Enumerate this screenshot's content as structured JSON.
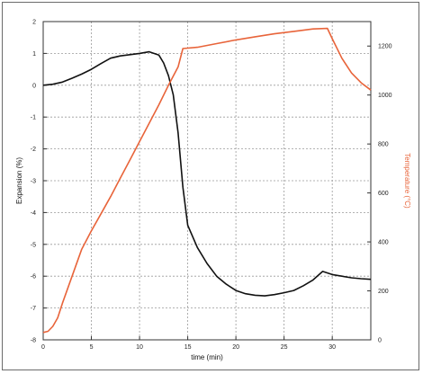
{
  "chart_data": {
    "type": "line",
    "xlabel": "time (min)",
    "ylabel_left": "Expansion (%)",
    "ylabel_right": "Temperature (°C)",
    "xlim": [
      0,
      34
    ],
    "ylim_left": [
      -8,
      2
    ],
    "ylim_right": [
      0,
      1300
    ],
    "x_ticks": [
      "0",
      "5",
      "10",
      "15",
      "20",
      "25",
      "30"
    ],
    "y_left_ticks": [
      "2",
      "1",
      "0",
      "-1",
      "-2",
      "-3",
      "-4",
      "-5",
      "-6",
      "-7",
      "-8"
    ],
    "y_right_ticks": [
      "0",
      "200",
      "400",
      "600",
      "800",
      "1000",
      "1200"
    ],
    "grid": true,
    "series": [
      {
        "axis": "left",
        "color": "#111111",
        "x": [
          0,
          1,
          2,
          3,
          4,
          5,
          6,
          7,
          8,
          9,
          10,
          11,
          12,
          12.5,
          13,
          13.5,
          14,
          14.5,
          15,
          16,
          17,
          18,
          19,
          20,
          21,
          22,
          23,
          24,
          25,
          26,
          27,
          28,
          29,
          30,
          31,
          32,
          33,
          34
        ],
        "y": [
          0.0,
          0.03,
          0.1,
          0.22,
          0.35,
          0.5,
          0.68,
          0.85,
          0.92,
          0.96,
          1.0,
          1.05,
          0.95,
          0.7,
          0.3,
          -0.3,
          -1.5,
          -3.2,
          -4.4,
          -5.1,
          -5.6,
          -6.0,
          -6.25,
          -6.45,
          -6.55,
          -6.6,
          -6.62,
          -6.58,
          -6.52,
          -6.45,
          -6.3,
          -6.12,
          -5.85,
          -5.95,
          -6.0,
          -6.05,
          -6.08,
          -6.1
        ]
      },
      {
        "axis": "right",
        "color": "#e8643a",
        "x": [
          0,
          0.5,
          1,
          1.5,
          2,
          3,
          4,
          5,
          6,
          7,
          8,
          9,
          10,
          11,
          12,
          13,
          14,
          14.5,
          16,
          18,
          20,
          22,
          24,
          26,
          28,
          29.5,
          30,
          31,
          32,
          33,
          34
        ],
        "y": [
          30,
          35,
          55,
          90,
          150,
          260,
          370,
          445,
          515,
          585,
          660,
          735,
          810,
          885,
          960,
          1040,
          1115,
          1190,
          1195,
          1210,
          1225,
          1238,
          1250,
          1260,
          1270,
          1272,
          1230,
          1150,
          1090,
          1050,
          1020
        ]
      }
    ]
  }
}
